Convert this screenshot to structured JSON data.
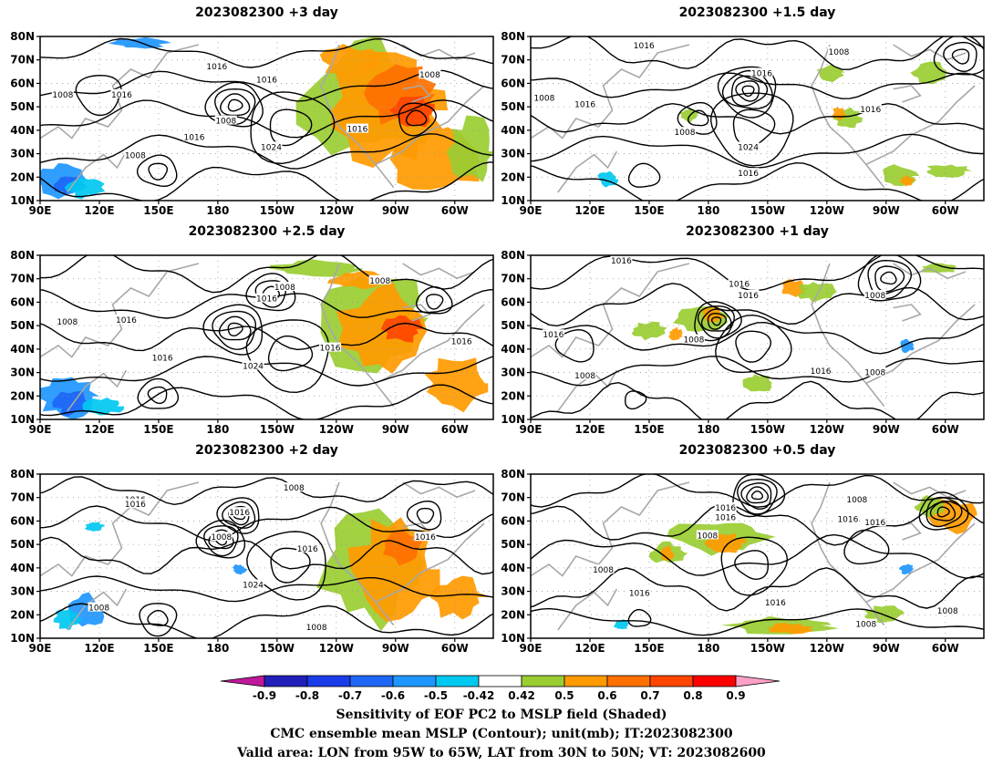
{
  "panels": [
    {
      "title": "2023082300  +3 day",
      "contour_labels": [
        "1016",
        "1008",
        "1008",
        "1016",
        "1016",
        "1008",
        "1024",
        "1016",
        "1016",
        "1008"
      ]
    },
    {
      "title": "2023082300  +1.5 day",
      "contour_labels": [
        "1016",
        "1008",
        "1016",
        "1008",
        "1016",
        "1008",
        "1024",
        "1016",
        "1016"
      ]
    },
    {
      "title": "2023082300  +2.5 day",
      "contour_labels": [
        "1008",
        "1008",
        "1016",
        "1016",
        "1008",
        "1016",
        "1024",
        "1016",
        "1016"
      ]
    },
    {
      "title": "2023082300  +1 day",
      "contour_labels": [
        "1016",
        "1016",
        "1016",
        "1008",
        "1016",
        "1008",
        "1008",
        "1016",
        "1008"
      ]
    },
    {
      "title": "2023082300  +2 day",
      "contour_labels": [
        "1016",
        "1016",
        "1008",
        "1016",
        "1008",
        "1016",
        "1024",
        "1016",
        "1008",
        "1008"
      ]
    },
    {
      "title": "2023082300  +0.5 day",
      "contour_labels": [
        "1016",
        "1016",
        "1008",
        "1008",
        "1016",
        "1008",
        "1016",
        "1008",
        "1016",
        "1016",
        "1008"
      ]
    }
  ],
  "axes": {
    "lat_labels": [
      "80N",
      "70N",
      "60N",
      "50N",
      "40N",
      "30N",
      "20N",
      "10N"
    ],
    "lon_labels": [
      "90E",
      "120E",
      "150E",
      "180",
      "150W",
      "120W",
      "90W",
      "60W"
    ]
  },
  "colorbar": {
    "ticks": [
      "-0.9",
      "-0.8",
      "-0.7",
      "-0.6",
      "-0.5",
      "-0.42",
      "0.42",
      "0.5",
      "0.6",
      "0.7",
      "0.8",
      "0.9"
    ],
    "colors": [
      "#2020b8",
      "#1a3ce8",
      "#1e66f5",
      "#1e96ff",
      "#00c8f0",
      "#ffffff",
      "#9acd32",
      "#ff9a00",
      "#ff7000",
      "#ff4500",
      "#ff0000"
    ],
    "low_extend_color": "#c0189a",
    "high_extend_color": "#ffa0c8"
  },
  "footer": {
    "line1": "Sensitivity of EOF PC2 to MSLP field (Shaded)",
    "line2": "CMC ensemble mean MSLP (Contour); unit(mb); IT:2023082300",
    "line3": "Valid area: LON from 95W to 65W, LAT from 30N to 50N; VT: 2023082600"
  }
}
